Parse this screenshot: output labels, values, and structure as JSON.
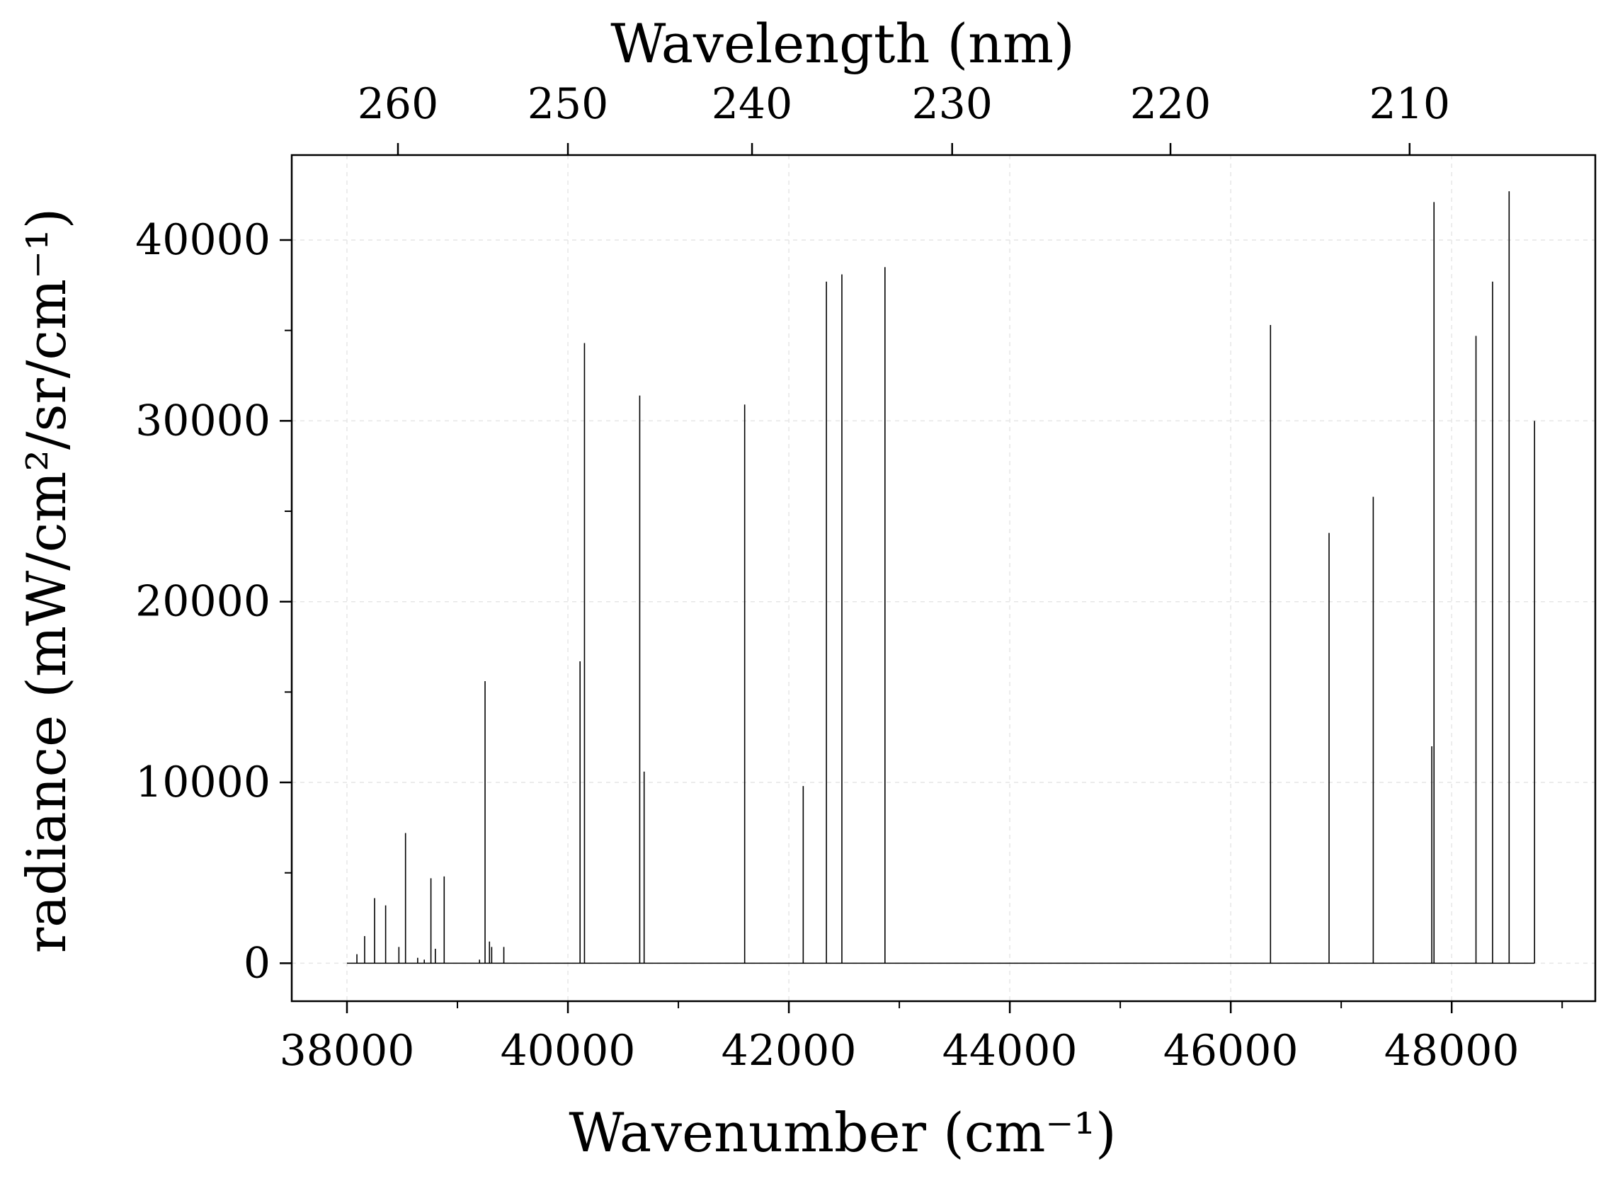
{
  "chart_data": {
    "type": "line",
    "title": "",
    "xlabel": "Wavenumber (cm⁻¹)",
    "ylabel": "radiance (mW/cm²/sr/cm⁻¹)",
    "secondary_xlabel": "Wavelength (nm)",
    "xlim": [
      37500,
      49300
    ],
    "ylim": [
      -2100,
      44700
    ],
    "baseline_range": [
      38000,
      48750
    ],
    "x_ticks": [
      38000,
      40000,
      42000,
      44000,
      46000,
      48000
    ],
    "x_tick_labels": [
      "38000",
      "40000",
      "42000",
      "44000",
      "46000",
      "48000"
    ],
    "x_minor_ticks": [
      39000,
      41000,
      43000,
      45000,
      47000,
      49000
    ],
    "y_ticks": [
      0,
      10000,
      20000,
      30000,
      40000
    ],
    "y_tick_labels": [
      "0",
      "10000",
      "20000",
      "30000",
      "40000"
    ],
    "y_minor_ticks": [
      5000,
      15000,
      25000,
      35000
    ],
    "top_ticks_nm": [
      260,
      250,
      240,
      230,
      220,
      210
    ],
    "top_tick_labels": [
      "260",
      "250",
      "240",
      "230",
      "220",
      "210"
    ],
    "grid": true,
    "line_color": "#000000",
    "lines": [
      {
        "x": 38090,
        "y": 500
      },
      {
        "x": 38160,
        "y": 1500
      },
      {
        "x": 38250,
        "y": 3600
      },
      {
        "x": 38350,
        "y": 3200
      },
      {
        "x": 38470,
        "y": 900
      },
      {
        "x": 38530,
        "y": 7200
      },
      {
        "x": 38640,
        "y": 300
      },
      {
        "x": 38700,
        "y": 200
      },
      {
        "x": 38760,
        "y": 4700
      },
      {
        "x": 38800,
        "y": 800
      },
      {
        "x": 38880,
        "y": 4800
      },
      {
        "x": 39200,
        "y": 200
      },
      {
        "x": 39250,
        "y": 15600
      },
      {
        "x": 39290,
        "y": 1200
      },
      {
        "x": 39310,
        "y": 900
      },
      {
        "x": 39420,
        "y": 900
      },
      {
        "x": 40110,
        "y": 16700
      },
      {
        "x": 40150,
        "y": 34300
      },
      {
        "x": 40650,
        "y": 31400
      },
      {
        "x": 40690,
        "y": 10600
      },
      {
        "x": 41600,
        "y": 30900
      },
      {
        "x": 42130,
        "y": 9800
      },
      {
        "x": 42340,
        "y": 37700
      },
      {
        "x": 42480,
        "y": 38100
      },
      {
        "x": 42870,
        "y": 38500
      },
      {
        "x": 46360,
        "y": 35300
      },
      {
        "x": 46890,
        "y": 23800
      },
      {
        "x": 47290,
        "y": 25800
      },
      {
        "x": 47820,
        "y": 12000
      },
      {
        "x": 47840,
        "y": 42100
      },
      {
        "x": 48220,
        "y": 34700
      },
      {
        "x": 48370,
        "y": 37700
      },
      {
        "x": 48520,
        "y": 42700
      },
      {
        "x": 48750,
        "y": 30000
      }
    ]
  }
}
